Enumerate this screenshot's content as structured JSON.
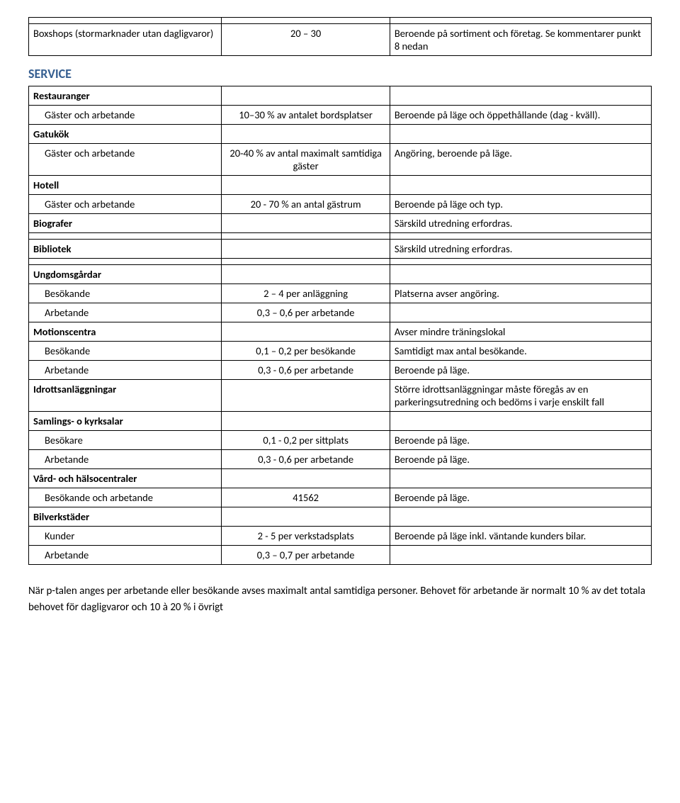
{
  "table1": {
    "rows": [
      {
        "c1": "",
        "c2": "",
        "c3": "",
        "bold": false
      },
      {
        "c1": "Boxshops (stormarknader utan dagligvaror)",
        "c2": "20 – 30",
        "c3": "Beroende på sortiment och företag. Se kommentarer punkt 8 nedan",
        "bold": false
      }
    ]
  },
  "service_title": "SERVICE",
  "table2": {
    "rows": [
      {
        "c1": "Restauranger",
        "bold": true,
        "indent": false,
        "c2": "",
        "c3": ""
      },
      {
        "c1": "Gäster och arbetande",
        "bold": false,
        "indent": true,
        "c2": "10–30 % av antalet bordsplatser",
        "c3": "Beroende på läge och öppethållande (dag - kväll)."
      },
      {
        "c1": "Gatukök",
        "bold": true,
        "indent": false,
        "c2": "",
        "c3": ""
      },
      {
        "c1": "Gäster och arbetande",
        "bold": false,
        "indent": true,
        "c2": "20-40 % av antal maximalt samtidiga gäster",
        "c3": "Angöring, beroende på läge."
      },
      {
        "c1": "Hotell",
        "bold": true,
        "indent": false,
        "c2": "",
        "c3": ""
      },
      {
        "c1": "Gäster och arbetande",
        "bold": false,
        "indent": true,
        "c2": "20 - 70 % an antal gästrum",
        "c3": "Beroende på läge och typ."
      },
      {
        "c1": "Biografer",
        "bold": true,
        "indent": false,
        "c2": "",
        "c3": "Särskild utredning erfordras."
      },
      {
        "c1": "",
        "bold": false,
        "indent": false,
        "c2": "",
        "c3": ""
      },
      {
        "c1": "Bibliotek",
        "bold": true,
        "indent": false,
        "c2": "",
        "c3": "Särskild utredning erfordras."
      },
      {
        "c1": "",
        "bold": false,
        "indent": false,
        "c2": "",
        "c3": ""
      },
      {
        "c1": "Ungdomsgårdar",
        "bold": true,
        "indent": false,
        "c2": "",
        "c3": ""
      },
      {
        "c1": "Besökande",
        "bold": false,
        "indent": true,
        "c2": "2 – 4 per anläggning",
        "c3": "Platserna avser angöring."
      },
      {
        "c1": "Arbetande",
        "bold": false,
        "indent": true,
        "c2": "0,3 – 0,6 per arbetande",
        "c3": ""
      },
      {
        "c1": "Motionscentra",
        "bold": true,
        "indent": false,
        "c2": "",
        "c3": "Avser mindre träningslokal"
      },
      {
        "c1": "Besökande",
        "bold": false,
        "indent": true,
        "c2": "0,1 – 0,2 per besökande",
        "c3": "Samtidigt max antal besökande."
      },
      {
        "c1": "Arbetande",
        "bold": false,
        "indent": true,
        "c2": "0,3 - 0,6 per arbetande",
        "c3": "Beroende på läge."
      },
      {
        "c1": "Idrottsanläggningar",
        "bold": true,
        "indent": false,
        "c2": "",
        "c3": "Större idrottsanläggningar måste föregås av en parkeringsutredning och bedöms i varje enskilt fall"
      },
      {
        "c1": "Samlings- o kyrksalar",
        "bold": true,
        "indent": false,
        "c2": "",
        "c3": ""
      },
      {
        "c1": "Besökare",
        "bold": false,
        "indent": true,
        "c2": "0,1 - 0,2 per sittplats",
        "c3": "Beroende på läge."
      },
      {
        "c1": "Arbetande",
        "bold": false,
        "indent": true,
        "c2": "0,3 - 0,6 per arbetande",
        "c3": "Beroende på läge."
      },
      {
        "c1": "Vård- och hälsocentraler",
        "bold": true,
        "indent": false,
        "c2": "",
        "c3": ""
      },
      {
        "c1": "Besökande och arbetande",
        "bold": false,
        "indent": true,
        "c2": "41562",
        "c3": "Beroende på läge."
      },
      {
        "c1": "Bilverkstäder",
        "bold": true,
        "indent": false,
        "c2": "",
        "c3": ""
      },
      {
        "c1": "Kunder",
        "bold": false,
        "indent": true,
        "c2": "2 - 5 per verkstadsplats",
        "c3": "Beroende på läge inkl. väntande kunders bilar."
      },
      {
        "c1": "Arbetande",
        "bold": false,
        "indent": true,
        "c2": "0,3 – 0,7 per arbetande",
        "c3": ""
      }
    ]
  },
  "footer": "När p-talen anges per arbetande eller besökande avses maximalt antal samtidiga personer. Behovet för arbetande är normalt 10 % av det totala behovet för dagligvaror och 10 à 20 % i övrigt"
}
